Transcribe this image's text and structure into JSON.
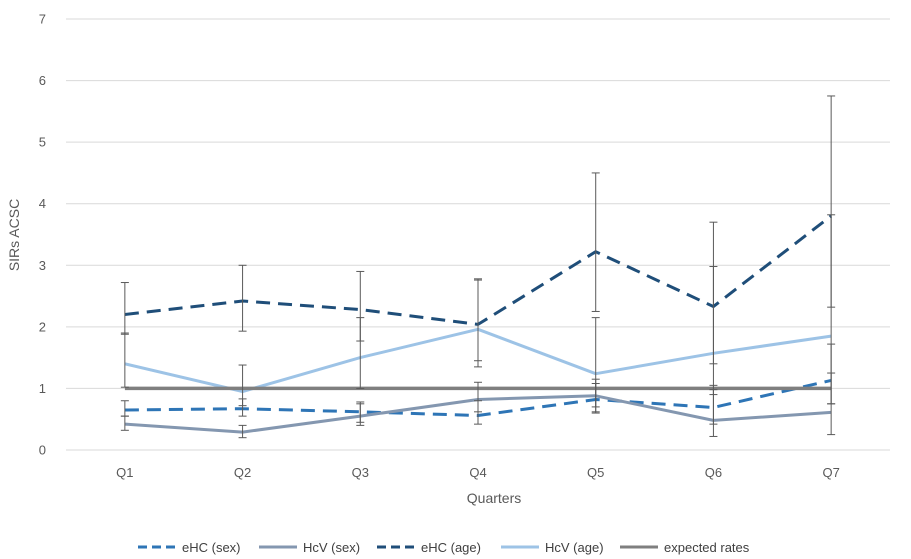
{
  "chart_data": {
    "type": "line",
    "title": "",
    "xlabel": "Quarters",
    "ylabel": "SIRs ACSC",
    "categories": [
      "Q1",
      "Q2",
      "Q3",
      "Q4",
      "Q5",
      "Q6",
      "Q7"
    ],
    "ylim": [
      0,
      7
    ],
    "yticks": [
      "0",
      "1",
      "2",
      "3",
      "4",
      "5",
      "6",
      "7"
    ],
    "grid": true,
    "legend_position": "bottom",
    "series": [
      {
        "name": "eHC (sex)",
        "color": "#2E75B6",
        "dash": "dashed",
        "values": [
          0.65,
          0.67,
          0.62,
          0.56,
          0.82,
          0.69,
          1.13
        ],
        "err_low": [
          0.55,
          0.55,
          0.45,
          0.42,
          0.6,
          0.42,
          0.75
        ],
        "err_high": [
          0.8,
          0.83,
          0.78,
          0.8,
          1.08,
          1.05,
          1.72
        ]
      },
      {
        "name": "HcV (sex)",
        "color": "#8497B0",
        "dash": "solid",
        "values": [
          0.42,
          0.29,
          0.55,
          0.82,
          0.88,
          0.48,
          0.61
        ],
        "err_low": [
          0.32,
          0.2,
          0.4,
          0.62,
          0.62,
          0.22,
          0.25
        ],
        "err_high": [
          0.55,
          0.4,
          0.75,
          1.1,
          1.15,
          0.98,
          1.25
        ]
      },
      {
        "name": "eHC (age)",
        "color": "#1F4E79",
        "dash": "dashed",
        "values": [
          2.2,
          2.42,
          2.28,
          2.04,
          3.22,
          2.33,
          3.8
        ],
        "err_low": [
          1.88,
          1.93,
          1.77,
          1.45,
          2.25,
          1.4,
          2.32
        ],
        "err_high": [
          2.72,
          3.0,
          2.9,
          2.78,
          4.5,
          3.7,
          5.75
        ]
      },
      {
        "name": "HcV (age)",
        "color": "#9DC3E6",
        "dash": "solid",
        "values": [
          1.4,
          0.95,
          1.5,
          1.96,
          1.24,
          1.57,
          1.85
        ],
        "err_low": [
          1.02,
          0.72,
          1.0,
          1.35,
          0.7,
          0.9,
          0.75
        ],
        "err_high": [
          1.9,
          1.38,
          2.15,
          2.76,
          2.15,
          2.98,
          3.82
        ]
      },
      {
        "name": "expected rates",
        "color": "#7F7F7F",
        "dash": "solid",
        "values": [
          1,
          1,
          1,
          1,
          1,
          1,
          1
        ]
      }
    ]
  }
}
